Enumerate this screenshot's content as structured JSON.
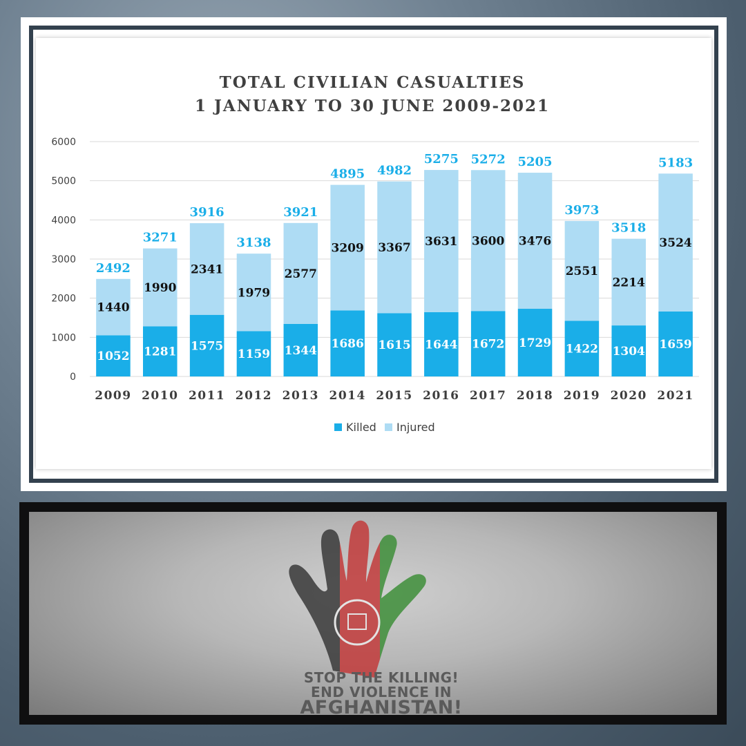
{
  "chart_data": {
    "type": "bar",
    "stacked": true,
    "title": "TOTAL CIVILIAN CASUALTIES",
    "subtitle": "1 JANUARY TO 30 JUNE 2009-2021",
    "categories": [
      "2009",
      "2010",
      "2011",
      "2012",
      "2013",
      "2014",
      "2015",
      "2016",
      "2017",
      "2018",
      "2019",
      "2020",
      "2021"
    ],
    "series": [
      {
        "name": "Killed",
        "color": "#1aaee8",
        "values": [
          1052,
          1281,
          1575,
          1159,
          1344,
          1686,
          1615,
          1644,
          1672,
          1729,
          1422,
          1304,
          1659
        ]
      },
      {
        "name": "Injured",
        "color": "#aedcf4",
        "values": [
          1440,
          1990,
          2341,
          1979,
          2577,
          3209,
          3367,
          3631,
          3600,
          3476,
          2551,
          2214,
          3524
        ]
      }
    ],
    "totals": [
      2492,
      3271,
      3916,
      3138,
      3921,
      4895,
      4982,
      5275,
      5272,
      5205,
      3973,
      3518,
      5183
    ],
    "ylim": [
      0,
      6000
    ],
    "yticks": [
      0,
      1000,
      2000,
      3000,
      4000,
      5000,
      6000
    ],
    "grid": true,
    "legend_position": "bottom"
  },
  "poster": {
    "slogan_line1": "STOP THE KILLING!",
    "slogan_line2": "END VIOLENCE IN",
    "slogan_line3": "AFGHANISTAN!",
    "flag_colors": [
      "#1b1b1b",
      "#c8102e",
      "#007a36"
    ]
  }
}
